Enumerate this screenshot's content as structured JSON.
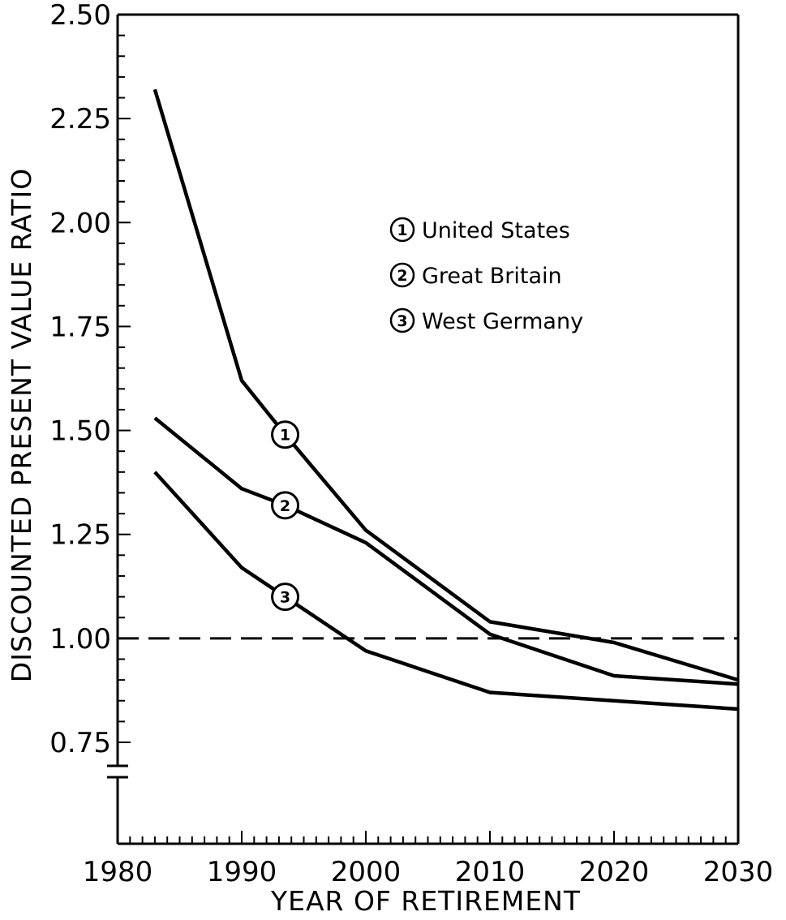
{
  "chart_data": {
    "type": "line",
    "title": "",
    "xlabel": "YEAR OF RETIREMENT",
    "ylabel": "DISCOUNTED PRESENT VALUE RATIO",
    "xlim": [
      1980,
      2030
    ],
    "ylim": [
      0.75,
      2.5
    ],
    "y_axis_break": true,
    "x_ticks": [
      1980,
      1990,
      2000,
      2010,
      2020,
      2030
    ],
    "x_tick_labels": [
      "1980",
      "1990",
      "2000",
      "2010",
      "2020",
      "2030"
    ],
    "y_ticks": [
      0.75,
      1.0,
      1.25,
      1.5,
      1.75,
      2.0,
      2.25,
      2.5
    ],
    "y_tick_labels": [
      "0.75",
      "1.00",
      "1.25",
      "1.50",
      "1.75",
      "2.00",
      "2.25",
      "2.50"
    ],
    "reference_line": {
      "y": 1.0,
      "style": "dashed"
    },
    "grid": false,
    "legend_position": "upper-right",
    "series": [
      {
        "name": "United States",
        "marker": "1",
        "x": [
          1983,
          1990,
          1993.5,
          2000,
          2010,
          2020,
          2030
        ],
        "y": [
          2.32,
          1.62,
          1.49,
          1.26,
          1.04,
          0.99,
          0.9
        ]
      },
      {
        "name": "Great Britain",
        "marker": "2",
        "x": [
          1983,
          1990,
          1993.5,
          2000,
          2010,
          2020,
          2030
        ],
        "y": [
          1.53,
          1.36,
          1.32,
          1.23,
          1.01,
          0.91,
          0.89
        ]
      },
      {
        "name": "West Germany",
        "marker": "3",
        "x": [
          1983,
          1990,
          1993.5,
          2000,
          2010,
          2020,
          2030
        ],
        "y": [
          1.4,
          1.17,
          1.1,
          0.97,
          0.87,
          0.85,
          0.83
        ]
      }
    ],
    "colors": {
      "line": "#000000",
      "background": "#ffffff"
    }
  }
}
